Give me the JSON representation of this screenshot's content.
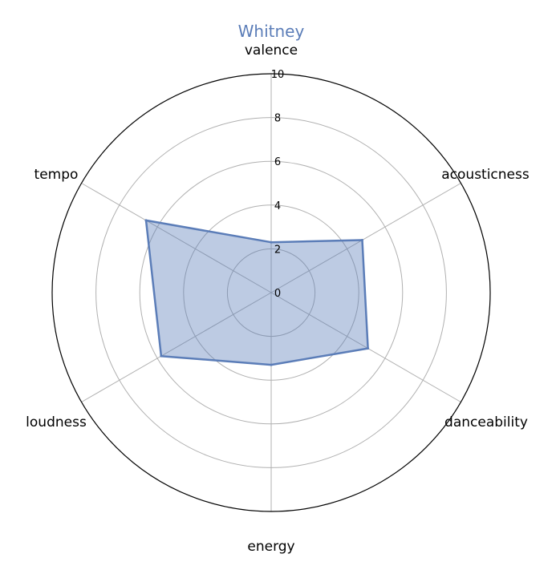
{
  "chart_data": {
    "type": "radar",
    "title": "Whitney",
    "axes": [
      "valence",
      "acousticness",
      "danceability",
      "energy",
      "loudness",
      "tempo"
    ],
    "series": [
      {
        "name": "Whitney",
        "values": [
          2.3,
          4.8,
          5.1,
          3.3,
          5.8,
          6.6
        ]
      }
    ],
    "rticks": [
      0,
      2,
      4,
      6,
      8,
      10
    ],
    "rlim": [
      0,
      10
    ],
    "grid": true,
    "colors": {
      "series_line": "#5b7db8",
      "series_fill": "#5b7db8",
      "title": "#5b7db8",
      "grid": "#b0b0b0",
      "outer_ring": "#000000"
    }
  }
}
